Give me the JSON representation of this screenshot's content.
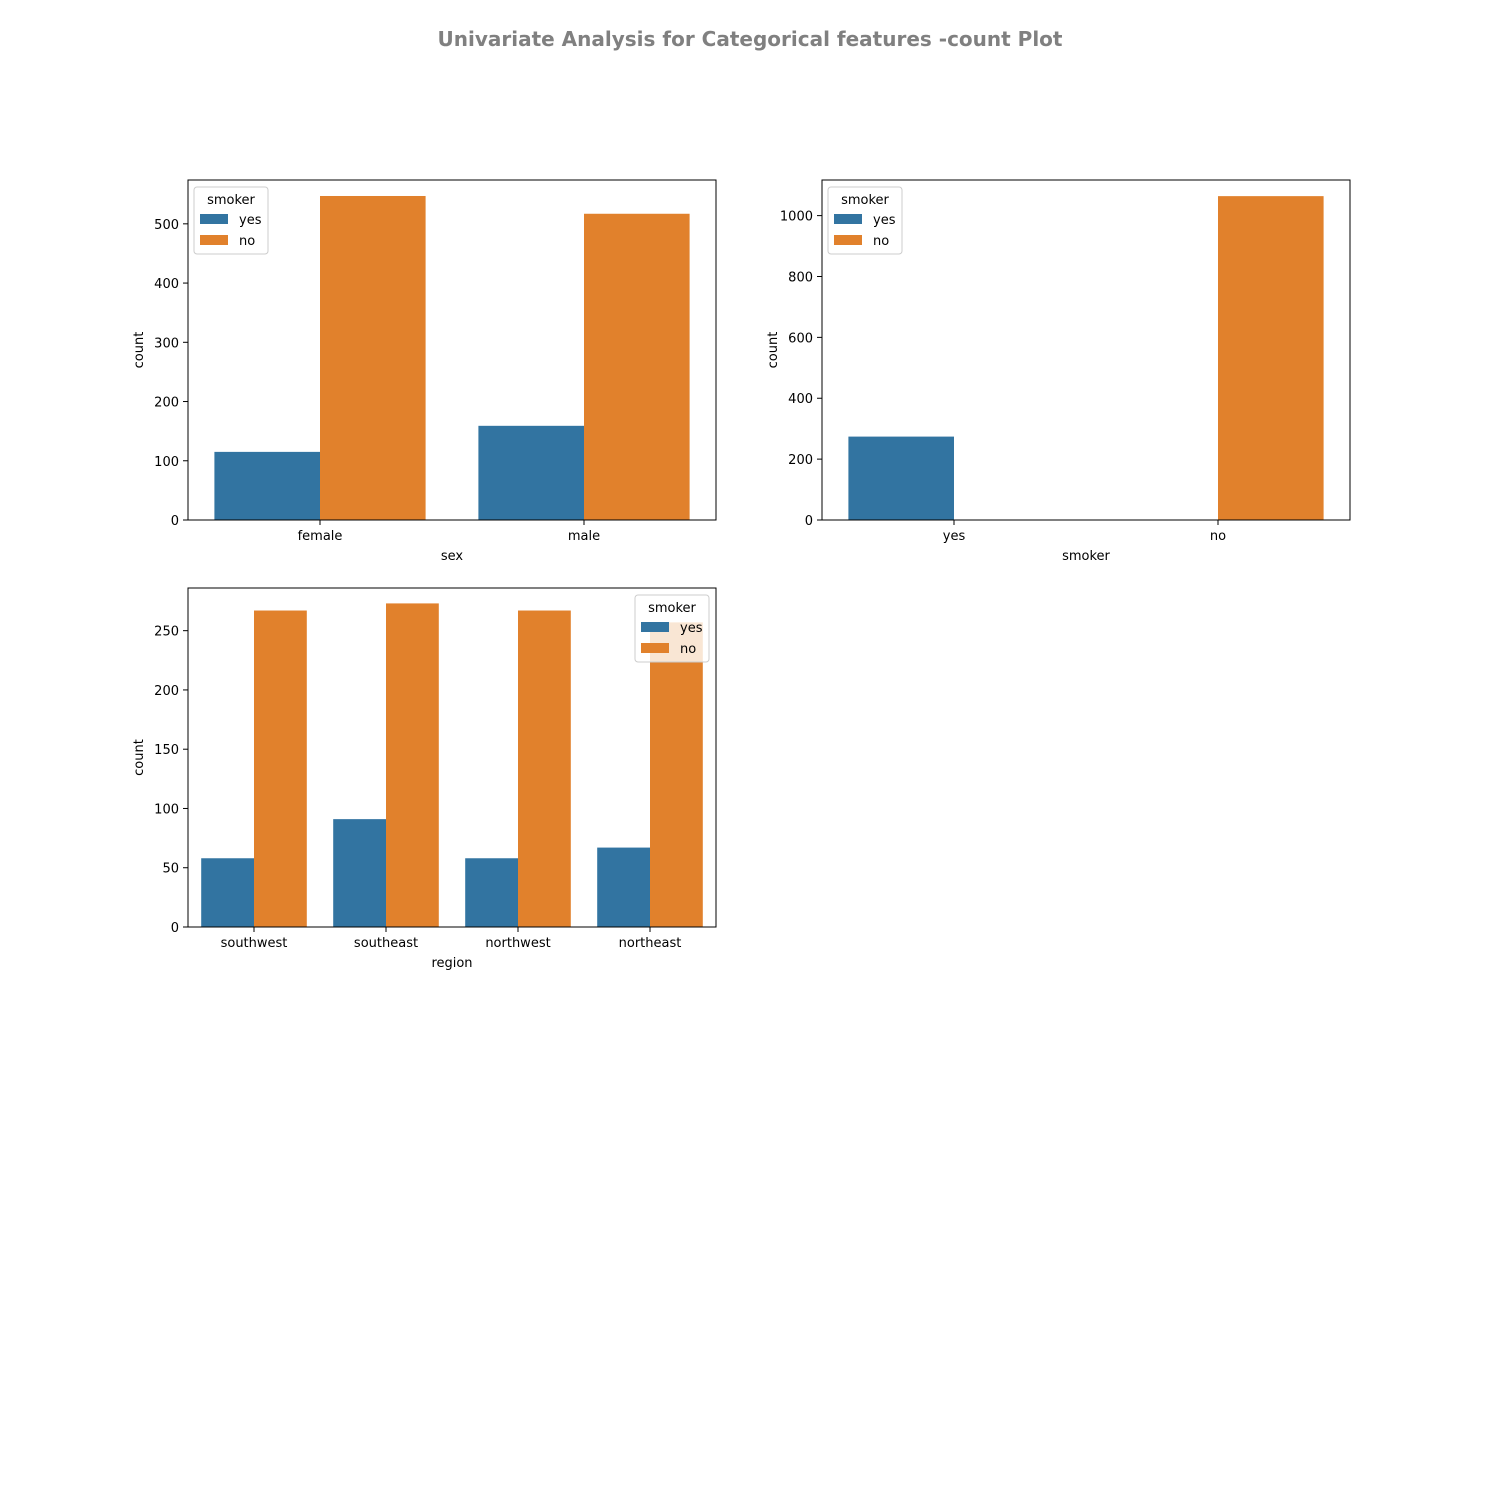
{
  "figure": {
    "suptitle": "Univariate Analysis for Categorical features -count Plot"
  },
  "colors": {
    "yes": "#3274a1",
    "no": "#e1812c",
    "axes_edge": "#000000",
    "legend_edge": "#cccccc"
  },
  "chart_data": [
    {
      "type": "bar",
      "xlabel": "sex",
      "ylabel": "count",
      "categories": [
        "female",
        "male"
      ],
      "series": [
        {
          "name": "yes",
          "values": [
            115,
            159
          ]
        },
        {
          "name": "no",
          "values": [
            547,
            517
          ]
        }
      ],
      "ylim": [
        0,
        574
      ],
      "yticks": [
        0,
        100,
        200,
        300,
        400,
        500
      ],
      "grid": false,
      "legend": {
        "title": "smoker",
        "placement": "upper left",
        "labels": [
          "yes",
          "no"
        ]
      }
    },
    {
      "type": "bar",
      "xlabel": "smoker",
      "ylabel": "count",
      "categories": [
        "yes",
        "no"
      ],
      "series": [
        {
          "name": "yes",
          "values": [
            274,
            0
          ]
        },
        {
          "name": "no",
          "values": [
            0,
            1064
          ]
        }
      ],
      "ylim": [
        0,
        1117
      ],
      "yticks": [
        0,
        200,
        400,
        600,
        800,
        1000
      ],
      "grid": false,
      "legend": {
        "title": "smoker",
        "placement": "upper left",
        "labels": [
          "yes",
          "no"
        ]
      }
    },
    {
      "type": "bar",
      "xlabel": "region",
      "ylabel": "count",
      "categories": [
        "southwest",
        "southeast",
        "northwest",
        "northeast"
      ],
      "series": [
        {
          "name": "yes",
          "values": [
            58,
            91,
            58,
            67
          ]
        },
        {
          "name": "no",
          "values": [
            267,
            273,
            267,
            257
          ]
        }
      ],
      "ylim": [
        0,
        286
      ],
      "yticks": [
        0,
        50,
        100,
        150,
        200,
        250
      ],
      "grid": false,
      "legend": {
        "title": "smoker",
        "placement": "upper right",
        "labels": [
          "yes",
          "no"
        ]
      }
    }
  ]
}
